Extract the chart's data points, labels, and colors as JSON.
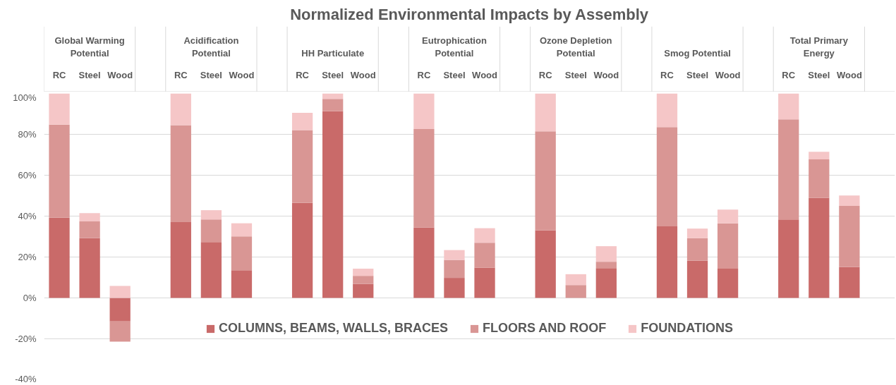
{
  "chart_data": {
    "type": "bar",
    "stacked": true,
    "title": "Normalized Environmental Impacts by Assembly",
    "categories": [
      "RC",
      "Steel",
      "Wood",
      null,
      "RC",
      "Steel",
      "Wood",
      null,
      "RC",
      "Steel",
      "Wood",
      null,
      "RC",
      "Steel",
      "Wood",
      null,
      "RC",
      "Steel",
      "Wood",
      null,
      "RC",
      "Steel",
      "Wood",
      null,
      "RC",
      "Steel",
      "Wood",
      null
    ],
    "annotations": [
      "Global Warming Potential",
      "Acidification Potential",
      "HH Particulate",
      "Eutrophication Potential",
      "Ozone Depletion Potential",
      "Smog Potential",
      "Total Primary Energy"
    ],
    "series": [
      {
        "name": "COLUMNS, BEAMS, WALLS, BRACES",
        "color": "#c96a69",
        "values": [
          39.2,
          29.2,
          -11.5,
          null,
          37.1,
          27.3,
          13.5,
          null,
          46.5,
          91.3,
          6.8,
          null,
          34.4,
          9.8,
          14.8,
          null,
          33.0,
          0,
          14.6,
          null,
          35.0,
          18.2,
          14.3,
          null,
          38.4,
          49.0,
          15.1,
          null
        ]
      },
      {
        "name": "FLOORS AND ROOF",
        "color": "#d99694",
        "values": [
          45.5,
          8.2,
          -9.9,
          null,
          47.4,
          11.1,
          16.6,
          null,
          35.6,
          6.0,
          4.0,
          null,
          48.2,
          8.8,
          12.2,
          null,
          48.5,
          6.3,
          3.1,
          null,
          48.5,
          11.0,
          22.2,
          null,
          48.9,
          18.8,
          29.9,
          null
        ]
      },
      {
        "name": "FOUNDATIONS",
        "color": "#f5c6c7",
        "values": [
          15.3,
          4.1,
          5.9,
          null,
          15.5,
          4.5,
          6.4,
          null,
          8.4,
          2.7,
          3.5,
          null,
          17.4,
          4.8,
          7.1,
          null,
          18.5,
          5.3,
          7.6,
          null,
          16.5,
          4.7,
          6.7,
          null,
          12.7,
          3.7,
          5.1,
          null
        ]
      }
    ],
    "ylim": [
      -40,
      100
    ],
    "yticks": [
      {
        "value": -40,
        "label": "-40%"
      },
      {
        "value": -20,
        "label": "-20%"
      },
      {
        "value": 0,
        "label": "0%"
      },
      {
        "value": 20,
        "label": "20%"
      },
      {
        "value": 40,
        "label": "40%"
      },
      {
        "value": 60,
        "label": "60%"
      },
      {
        "value": 80,
        "label": "80%"
      },
      {
        "value": 100,
        "label": "100%"
      }
    ],
    "grid": "y",
    "legend": "bottom"
  }
}
